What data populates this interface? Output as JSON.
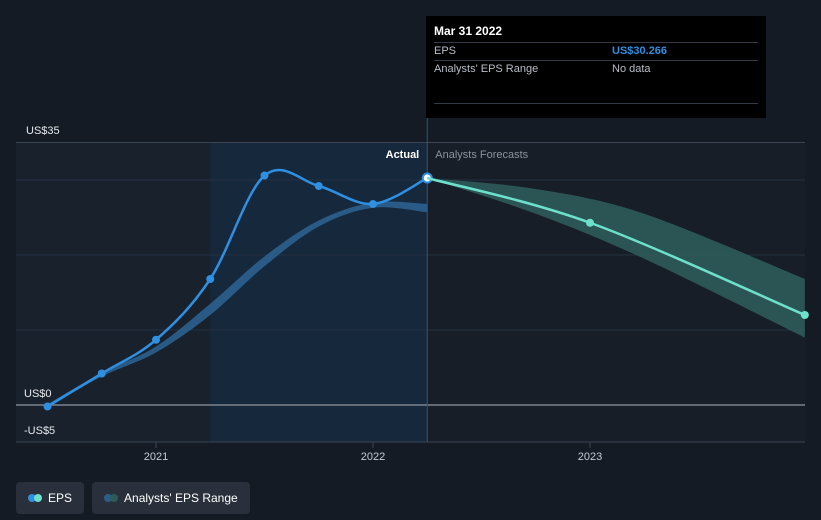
{
  "chart_data": {
    "type": "line",
    "y_axis": {
      "min": -5,
      "max": 35,
      "tick_labels": [
        "US$35",
        "US$0",
        "-US$5"
      ]
    },
    "x_axis": {
      "ticks": [
        {
          "x": 2021,
          "label": "2021"
        },
        {
          "x": 2022,
          "label": "2022"
        },
        {
          "x": 2023,
          "label": "2023"
        }
      ]
    },
    "regions": {
      "actual_label": "Actual",
      "forecast_label": "Analysts Forecasts",
      "past_window_start": 2021.25,
      "divider_x": 2022.25
    },
    "series": [
      {
        "name": "EPS",
        "color": "#2f8fe0",
        "points": [
          {
            "x": 2020.5,
            "y": -0.2
          },
          {
            "x": 2020.75,
            "y": 4.2
          },
          {
            "x": 2021.0,
            "y": 8.7
          },
          {
            "x": 2021.25,
            "y": 16.8
          },
          {
            "x": 2021.5,
            "y": 30.6
          },
          {
            "x": 2021.75,
            "y": 29.2
          },
          {
            "x": 2022.0,
            "y": 26.8
          },
          {
            "x": 2022.25,
            "y": 30.266
          }
        ]
      },
      {
        "name": "EPS forecast",
        "color": "#6de0cc",
        "points": [
          {
            "x": 2022.25,
            "y": 30.266
          },
          {
            "x": 2023.0,
            "y": 24.3
          },
          {
            "x": 2023.99,
            "y": 12.0
          }
        ]
      }
    ],
    "past_estimate_band": {
      "color": "#2a5e8a",
      "points": [
        {
          "x": 2020.5,
          "lo": -0.3,
          "hi": 0.1
        },
        {
          "x": 2020.75,
          "lo": 3.8,
          "hi": 4.3
        },
        {
          "x": 2021.0,
          "lo": 7.0,
          "hi": 7.8
        },
        {
          "x": 2021.25,
          "lo": 12.0,
          "hi": 13.5
        },
        {
          "x": 2021.5,
          "lo": 18.5,
          "hi": 19.8
        },
        {
          "x": 2021.75,
          "lo": 23.8,
          "hi": 24.6
        },
        {
          "x": 2022.0,
          "lo": 26.3,
          "hi": 27.0
        },
        {
          "x": 2022.25,
          "lo": 25.7,
          "hi": 26.8
        }
      ]
    },
    "forecast_band": {
      "color": "#2e5b59",
      "points": [
        {
          "x": 2022.25,
          "lo": 30.266,
          "hi": 30.266
        },
        {
          "x": 2022.75,
          "lo": 25.5,
          "hi": 28.8
        },
        {
          "x": 2023.25,
          "lo": 19.5,
          "hi": 25.5
        },
        {
          "x": 2023.99,
          "lo": 9.0,
          "hi": 16.8
        }
      ]
    }
  },
  "tooltip": {
    "date": "Mar 31 2022",
    "rows": [
      {
        "label": "EPS",
        "value": "US$30.266"
      },
      {
        "label": "Analysts' EPS Range",
        "value": "No data"
      }
    ]
  },
  "legend": {
    "items": [
      {
        "label": "EPS",
        "colors": [
          "#2f8fe0",
          "#6de0cc"
        ]
      },
      {
        "label": "Analysts' EPS Range",
        "colors": [
          "#2a5e8a",
          "#2e5b59"
        ]
      }
    ]
  }
}
